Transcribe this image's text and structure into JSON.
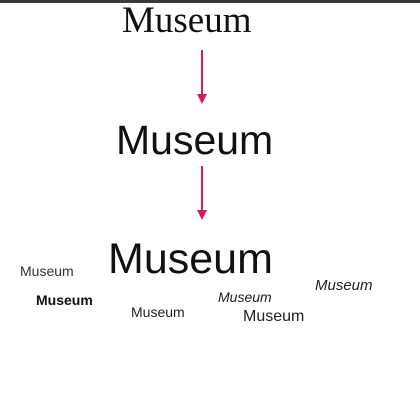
{
  "words": {
    "serif_top": "Museum",
    "sans_mid": "Museum",
    "sans_big": "Museum",
    "small_left": "Museum",
    "small_bold": "Museum",
    "small_center": "Museum",
    "italic_center": "Museum",
    "italic_right": "Museum",
    "small_right": "Museum"
  },
  "colors": {
    "arrow": "#d81b60",
    "text": "#111111",
    "top_border": "#3a3a3a"
  }
}
